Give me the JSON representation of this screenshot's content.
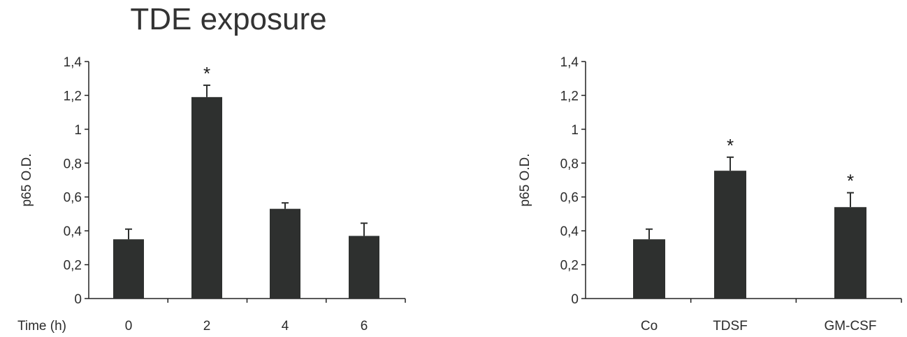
{
  "figure_title": "TDE exposure",
  "colors": {
    "bar": "#2e302f",
    "axis": "#222222",
    "text": "#2b2b2b"
  },
  "chart_data": [
    {
      "type": "bar",
      "title": "",
      "xlabel": "Time (h)",
      "ylabel": "p65 O.D.",
      "ylim": [
        0,
        1.4
      ],
      "yticks": [
        "0",
        "0,2",
        "0,4",
        "0,6",
        "0,8",
        "1",
        "1,2",
        "1,4"
      ],
      "categories": [
        "0",
        "2",
        "4",
        "6"
      ],
      "values": [
        0.35,
        1.19,
        0.53,
        0.37
      ],
      "errors": [
        0.06,
        0.07,
        0.035,
        0.075
      ],
      "significance": [
        "",
        "*",
        "",
        ""
      ]
    },
    {
      "type": "bar",
      "title": "",
      "xlabel": "",
      "ylabel": "p65 O.D.",
      "ylim": [
        0,
        1.4
      ],
      "yticks": [
        "0",
        "0,2",
        "0,4",
        "0,6",
        "0,8",
        "1",
        "1,2",
        "1,4"
      ],
      "categories": [
        "Co",
        "TDSF",
        "GM-CSF"
      ],
      "values": [
        0.35,
        0.755,
        0.54
      ],
      "errors": [
        0.06,
        0.08,
        0.085
      ],
      "significance": [
        "",
        "*",
        "*"
      ]
    }
  ]
}
